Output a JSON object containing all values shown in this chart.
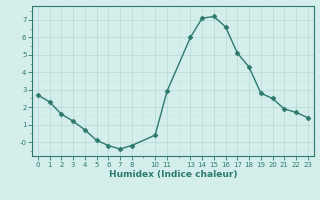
{
  "x": [
    0,
    1,
    2,
    3,
    4,
    5,
    6,
    7,
    8,
    10,
    11,
    13,
    14,
    15,
    16,
    17,
    18,
    19,
    20,
    21,
    22,
    23
  ],
  "y": [
    2.7,
    2.3,
    1.6,
    1.2,
    0.7,
    0.1,
    -0.2,
    -0.4,
    -0.2,
    0.4,
    2.9,
    6.0,
    7.1,
    7.2,
    6.6,
    5.1,
    4.3,
    2.8,
    2.5,
    1.9,
    1.7,
    1.4
  ],
  "line_color": "#2d7a6c",
  "marker_color": "#2d7a6c",
  "bg_color": "#d4eeec",
  "grid_major_color": "#b8d8d4",
  "grid_minor_color": "#c8e4e0",
  "xlabel": "Humidex (Indice chaleur)",
  "ylim": [
    -0.8,
    7.8
  ],
  "xlim": [
    -0.5,
    23.5
  ],
  "yticks": [
    0,
    1,
    2,
    3,
    4,
    5,
    6,
    7
  ],
  "ytick_labels": [
    "-0",
    "1",
    "2",
    "3",
    "4",
    "5",
    "6",
    "7"
  ],
  "xticks": [
    0,
    1,
    2,
    3,
    4,
    5,
    6,
    7,
    8,
    10,
    11,
    13,
    14,
    15,
    16,
    17,
    18,
    19,
    20,
    21,
    22,
    23
  ],
  "xtick_labels": [
    "0",
    "1",
    "2",
    "3",
    "4",
    "5",
    "6",
    "7",
    "8",
    "10",
    "11",
    "13",
    "14",
    "15",
    "16",
    "17",
    "18",
    "19",
    "20",
    "21",
    "22",
    "23"
  ],
  "axis_color": "#2d7a6c",
  "tick_color": "#2d7a6c",
  "text_color": "#2d7a6c",
  "line_width": 1.0,
  "marker_size": 2.5,
  "xlabel_fontsize": 6.5,
  "tick_fontsize": 5.0
}
